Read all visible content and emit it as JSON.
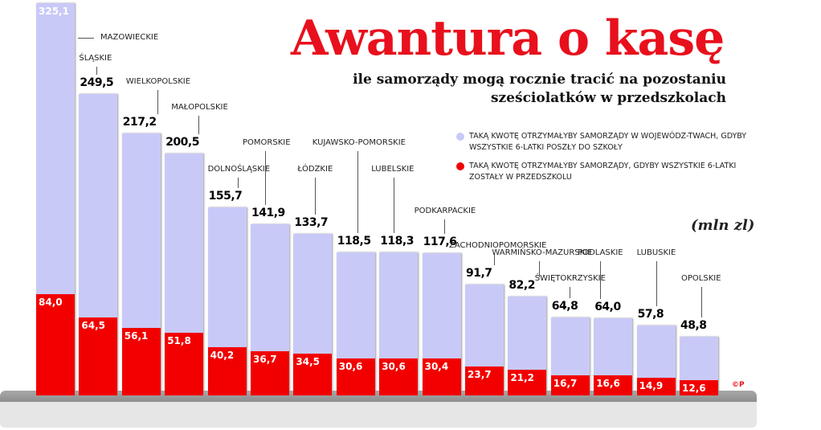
{
  "header": {
    "title": "Awantura o kasę",
    "subtitle": "ile samorządy mogą rocznie tracić na pozostaniu sześciolatków w przedszkolach"
  },
  "legend": {
    "items": [
      {
        "label": "Taką kwotę otrzymałyby samorządy w wojewódz-twach, gdyby wszystkie 6-latki poszły do szkoły",
        "color": "#c9c9f8"
      },
      {
        "label": "Taką kwotę otrzymałyby samorządy, gdyby wszystkie 6-latki zostały w przedszkolu",
        "color": "#f20000"
      }
    ]
  },
  "unit": "(mln zl)",
  "copyright": "©P",
  "chart_data": {
    "type": "bar",
    "title": "Awantura o kasę",
    "subtitle": "ile samorządy mogą rocznie tracić na pozostaniu sześciolatków w przedszkolach",
    "ylabel": "mln zł",
    "categories": [
      "MAZOWIECKIE",
      "ŚLĄSKIE",
      "WIELKOPOLSKIE",
      "MAŁOPOLSKIE",
      "DOLNOŚLĄSKIE",
      "POMORSKIE",
      "ŁÓDZKIE",
      "KUJAWSKO-POMORSKIE",
      "LUBELSKIE",
      "PODKARPACKIE",
      "ZACHODNIOPOMORSKIE",
      "WARMIŃSKO-MAZURSKIE",
      "ŚWIĘTOKRZYSKIE",
      "PODLASKIE",
      "LUBUSKIE",
      "OPOLSKIE"
    ],
    "series": [
      {
        "name": "Taką kwotę otrzymałyby samorządy w województwach, gdyby wszystkie 6-latki poszły do szkoły",
        "color": "#c9c9f8",
        "values": [
          325.1,
          249.5,
          217.2,
          200.5,
          155.7,
          141.9,
          133.7,
          118.5,
          118.3,
          117.6,
          91.7,
          82.2,
          64.8,
          64.0,
          57.8,
          48.8
        ],
        "labels": [
          "325,1",
          "249,5",
          "217,2",
          "200,5",
          "155,7",
          "141,9",
          "133,7",
          "118,5",
          "118,3",
          "117,6",
          "91,7",
          "82,2",
          "64,8",
          "64,0",
          "57,8",
          "48,8"
        ]
      },
      {
        "name": "Taką kwotę otrzymałyby samorządy, gdyby wszystkie 6-latki zostały w przedszkolu",
        "color": "#f20000",
        "values": [
          84.0,
          64.5,
          56.1,
          51.8,
          40.2,
          36.7,
          34.5,
          30.6,
          30.6,
          30.4,
          23.7,
          21.2,
          16.7,
          16.6,
          14.9,
          12.6
        ],
        "labels": [
          "84,0",
          "64,5",
          "56,1",
          "51,8",
          "40,2",
          "36,7",
          "34,5",
          "30,6",
          "30,6",
          "30,4",
          "23,7",
          "21,2",
          "16,7",
          "16,6",
          "14,9",
          "12,6"
        ]
      }
    ],
    "ylim": [
      0,
      330
    ],
    "grid": false,
    "legend_position": "top-right"
  }
}
